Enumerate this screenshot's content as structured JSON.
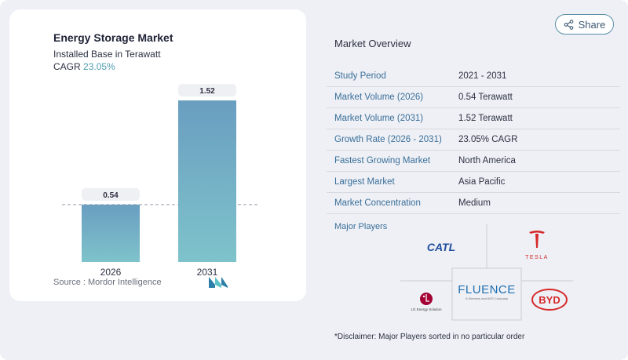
{
  "chart": {
    "title": "Energy Storage Market",
    "subtitle": "Installed Base in Terawatt",
    "cagr_label": "CAGR",
    "cagr_value": "23.05%",
    "source": "Source :  Mordor Intelligence"
  },
  "chart_data": {
    "type": "bar",
    "categories": [
      "2026",
      "2031"
    ],
    "values": [
      0.54,
      1.52
    ],
    "value_labels": [
      "0.54",
      "1.52"
    ],
    "title": "Energy Storage Market",
    "subtitle": "Installed Base in Terawatt",
    "xlabel": "",
    "ylabel": "",
    "ylim": [
      0,
      1.55
    ],
    "grid": false,
    "reference_line": 0.54,
    "colors": {
      "bar_top": "#6a9ec0",
      "bar_bottom": "#7ec3cb",
      "label_bg": "#eef0f4"
    }
  },
  "share": {
    "label": "Share"
  },
  "overview": {
    "title": "Market Overview",
    "rows": [
      {
        "key": "Study Period",
        "value": "2021 - 2031"
      },
      {
        "key": "Market Volume (2026)",
        "value": "0.54 Terawatt"
      },
      {
        "key": "Market Volume (2031)",
        "value": "1.52 Terawatt"
      },
      {
        "key": "Growth Rate (2026 - 2031)",
        "value": "23.05% CAGR"
      },
      {
        "key": "Fastest Growing Market",
        "value": "North America"
      },
      {
        "key": "Largest Market",
        "value": "Asia Pacific"
      },
      {
        "key": "Market Concentration",
        "value": "Medium"
      }
    ]
  },
  "players": {
    "title": "Major Players",
    "catl": "CATL",
    "tesla": "TESLA",
    "fluence": "FLUENCE",
    "fluence_sub": "A Siemens and AES Company",
    "lg": "LG Energy Solution",
    "byd": "BYD"
  },
  "disclaimer": "*Disclaimer: Major Players sorted in no particular order",
  "colors": {
    "accent": "#3a6f9a",
    "teal": "#4f9fb0",
    "page_bg": "#eef0f5"
  }
}
